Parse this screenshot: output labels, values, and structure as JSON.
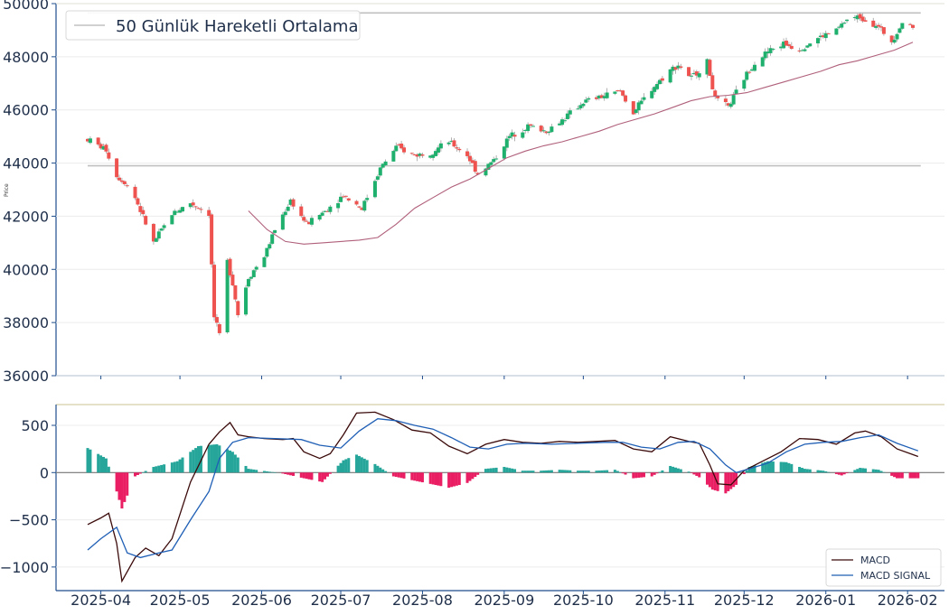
{
  "colors": {
    "up": "#26a69a",
    "up_body": "#1fb06e",
    "down": "#ef5350",
    "wick": "#9e9e9e",
    "ma": "#b0607a",
    "hline": "#c0c0c0",
    "axis": "#1f4e8c",
    "tick_label": "#1f2f4a",
    "macd": "#3b0a0a",
    "signal": "#1f5fb5",
    "hist_pos": "#26a69a",
    "hist_neg": "#e91e63",
    "top_border": "#d4cfa8"
  },
  "chart_data": [
    {
      "type": "candlestick",
      "ylabel": "Price",
      "ylim": [
        36000,
        50000
      ],
      "yticks": [
        36000,
        38000,
        40000,
        42000,
        44000,
        46000,
        48000,
        50000
      ],
      "legend": {
        "label": "50 Günlük Hareketli Ortalama",
        "placement": "top-left"
      },
      "horizontal_lines": [
        49650,
        43900
      ],
      "ohlc_anchors": [
        [
          "2025-03-27",
          44900
        ],
        [
          "2025-04-03",
          44500
        ],
        [
          "2025-04-07",
          43500
        ],
        [
          "2025-04-10",
          43300
        ],
        [
          "2025-04-14",
          42700
        ],
        [
          "2025-04-21",
          41000
        ],
        [
          "2025-04-28",
          42100
        ],
        [
          "2025-05-05",
          42500
        ],
        [
          "2025-05-12",
          42100
        ],
        [
          "2025-05-14",
          38200
        ],
        [
          "2025-05-16",
          37500
        ],
        [
          "2025-05-19",
          40300
        ],
        [
          "2025-05-21",
          39500
        ],
        [
          "2025-05-23",
          38300
        ],
        [
          "2025-05-27",
          39700
        ],
        [
          "2025-06-02",
          40500
        ],
        [
          "2025-06-06",
          41500
        ],
        [
          "2025-06-12",
          42600
        ],
        [
          "2025-06-18",
          41700
        ],
        [
          "2025-06-25",
          42200
        ],
        [
          "2025-07-02",
          42800
        ],
        [
          "2025-07-09",
          42300
        ],
        [
          "2025-07-16",
          43800
        ],
        [
          "2025-07-22",
          44600
        ],
        [
          "2025-07-29",
          44300
        ],
        [
          "2025-08-04",
          44400
        ],
        [
          "2025-08-11",
          44800
        ],
        [
          "2025-08-18",
          44300
        ],
        [
          "2025-08-22",
          43600
        ],
        [
          "2025-08-28",
          44100
        ],
        [
          "2025-09-03",
          45000
        ],
        [
          "2025-09-10",
          45400
        ],
        [
          "2025-09-17",
          45200
        ],
        [
          "2025-09-24",
          45700
        ],
        [
          "2025-10-01",
          46300
        ],
        [
          "2025-10-08",
          46500
        ],
        [
          "2025-10-15",
          46700
        ],
        [
          "2025-10-20",
          45900
        ],
        [
          "2025-10-27",
          46800
        ],
        [
          "2025-11-03",
          47500
        ],
        [
          "2025-11-06",
          47700
        ],
        [
          "2025-11-11",
          47200
        ],
        [
          "2025-11-17",
          47800
        ],
        [
          "2025-11-20",
          46400
        ],
        [
          "2025-11-25",
          46100
        ],
        [
          "2025-12-01",
          47200
        ],
        [
          "2025-12-05",
          47800
        ],
        [
          "2025-12-10",
          48200
        ],
        [
          "2025-12-16",
          48500
        ],
        [
          "2025-12-22",
          48300
        ],
        [
          "2025-12-29",
          48700
        ],
        [
          "2026-01-05",
          49000
        ],
        [
          "2026-01-09",
          49400
        ],
        [
          "2026-01-14",
          49500
        ],
        [
          "2026-01-20",
          49200
        ],
        [
          "2026-01-26",
          48600
        ],
        [
          "2026-01-30",
          49300
        ],
        [
          "2026-02-03",
          49100
        ]
      ],
      "ma50": [
        [
          "2025-05-27",
          42200
        ],
        [
          "2025-06-03",
          41500
        ],
        [
          "2025-06-10",
          41050
        ],
        [
          "2025-06-17",
          40950
        ],
        [
          "2025-06-24",
          41000
        ],
        [
          "2025-07-01",
          41050
        ],
        [
          "2025-07-08",
          41100
        ],
        [
          "2025-07-15",
          41200
        ],
        [
          "2025-07-22",
          41700
        ],
        [
          "2025-07-29",
          42300
        ],
        [
          "2025-08-05",
          42700
        ],
        [
          "2025-08-12",
          43100
        ],
        [
          "2025-08-19",
          43400
        ],
        [
          "2025-08-26",
          43800
        ],
        [
          "2025-09-02",
          44200
        ],
        [
          "2025-09-09",
          44450
        ],
        [
          "2025-09-16",
          44650
        ],
        [
          "2025-09-23",
          44800
        ],
        [
          "2025-09-30",
          45000
        ],
        [
          "2025-10-07",
          45200
        ],
        [
          "2025-10-14",
          45450
        ],
        [
          "2025-10-21",
          45650
        ],
        [
          "2025-10-28",
          45850
        ],
        [
          "2025-11-04",
          46100
        ],
        [
          "2025-11-11",
          46350
        ],
        [
          "2025-11-18",
          46500
        ],
        [
          "2025-11-25",
          46550
        ],
        [
          "2025-12-02",
          46650
        ],
        [
          "2025-12-09",
          46850
        ],
        [
          "2025-12-16",
          47050
        ],
        [
          "2025-12-23",
          47250
        ],
        [
          "2025-12-30",
          47450
        ],
        [
          "2026-01-06",
          47700
        ],
        [
          "2026-01-13",
          47850
        ],
        [
          "2026-01-20",
          48050
        ],
        [
          "2026-01-27",
          48250
        ],
        [
          "2026-02-03",
          48550
        ]
      ]
    },
    {
      "type": "line",
      "ylim": [
        -1250,
        720
      ],
      "yticks": [
        -1000,
        -500,
        0,
        500
      ],
      "legend_placement": "bottom-right",
      "series": [
        {
          "name": "MACD",
          "values": [
            [
              "2025-03-27",
              -550
            ],
            [
              "2025-04-01",
              -480
            ],
            [
              "2025-04-04",
              -430
            ],
            [
              "2025-04-07",
              -750
            ],
            [
              "2025-04-09",
              -1150
            ],
            [
              "2025-04-14",
              -900
            ],
            [
              "2025-04-18",
              -800
            ],
            [
              "2025-04-23",
              -880
            ],
            [
              "2025-04-28",
              -700
            ],
            [
              "2025-05-05",
              -100
            ],
            [
              "2025-05-12",
              300
            ],
            [
              "2025-05-16",
              430
            ],
            [
              "2025-05-20",
              530
            ],
            [
              "2025-05-23",
              400
            ],
            [
              "2025-05-27",
              380
            ],
            [
              "2025-06-02",
              360
            ],
            [
              "2025-06-09",
              350
            ],
            [
              "2025-06-13",
              360
            ],
            [
              "2025-06-17",
              220
            ],
            [
              "2025-06-23",
              150
            ],
            [
              "2025-06-27",
              200
            ],
            [
              "2025-07-02",
              400
            ],
            [
              "2025-07-07",
              630
            ],
            [
              "2025-07-14",
              640
            ],
            [
              "2025-07-21",
              560
            ],
            [
              "2025-07-28",
              450
            ],
            [
              "2025-08-04",
              420
            ],
            [
              "2025-08-11",
              280
            ],
            [
              "2025-08-18",
              200
            ],
            [
              "2025-08-25",
              300
            ],
            [
              "2025-09-01",
              350
            ],
            [
              "2025-09-08",
              320
            ],
            [
              "2025-09-15",
              310
            ],
            [
              "2025-09-22",
              330
            ],
            [
              "2025-09-29",
              320
            ],
            [
              "2025-10-06",
              330
            ],
            [
              "2025-10-13",
              340
            ],
            [
              "2025-10-20",
              250
            ],
            [
              "2025-10-27",
              220
            ],
            [
              "2025-11-03",
              380
            ],
            [
              "2025-11-10",
              330
            ],
            [
              "2025-11-14",
              310
            ],
            [
              "2025-11-18",
              80
            ],
            [
              "2025-11-21",
              -120
            ],
            [
              "2025-11-26",
              -130
            ],
            [
              "2025-12-01",
              20
            ],
            [
              "2025-12-08",
              120
            ],
            [
              "2025-12-15",
              220
            ],
            [
              "2025-12-22",
              360
            ],
            [
              "2025-12-29",
              350
            ],
            [
              "2026-01-05",
              300
            ],
            [
              "2026-01-12",
              420
            ],
            [
              "2026-01-16",
              440
            ],
            [
              "2026-01-22",
              380
            ],
            [
              "2026-01-28",
              250
            ],
            [
              "2026-02-03",
              190
            ],
            [
              "2026-02-05",
              170
            ]
          ]
        },
        {
          "name": "MACD SIGNAL",
          "values": [
            [
              "2025-03-27",
              -820
            ],
            [
              "2025-04-01",
              -700
            ],
            [
              "2025-04-07",
              -580
            ],
            [
              "2025-04-11",
              -850
            ],
            [
              "2025-04-16",
              -900
            ],
            [
              "2025-04-23",
              -850
            ],
            [
              "2025-04-28",
              -820
            ],
            [
              "2025-05-05",
              -500
            ],
            [
              "2025-05-12",
              -200
            ],
            [
              "2025-05-16",
              150
            ],
            [
              "2025-05-21",
              320
            ],
            [
              "2025-05-27",
              370
            ],
            [
              "2025-06-06",
              360
            ],
            [
              "2025-06-16",
              350
            ],
            [
              "2025-06-23",
              290
            ],
            [
              "2025-07-01",
              260
            ],
            [
              "2025-07-08",
              440
            ],
            [
              "2025-07-15",
              570
            ],
            [
              "2025-07-22",
              550
            ],
            [
              "2025-07-29",
              500
            ],
            [
              "2025-08-05",
              460
            ],
            [
              "2025-08-12",
              370
            ],
            [
              "2025-08-19",
              270
            ],
            [
              "2025-08-26",
              250
            ],
            [
              "2025-09-02",
              300
            ],
            [
              "2025-09-09",
              310
            ],
            [
              "2025-09-19",
              300
            ],
            [
              "2025-09-29",
              310
            ],
            [
              "2025-10-09",
              320
            ],
            [
              "2025-10-16",
              320
            ],
            [
              "2025-10-23",
              270
            ],
            [
              "2025-10-30",
              250
            ],
            [
              "2025-11-06",
              320
            ],
            [
              "2025-11-12",
              330
            ],
            [
              "2025-11-18",
              250
            ],
            [
              "2025-11-24",
              80
            ],
            [
              "2025-11-28",
              0
            ],
            [
              "2025-12-03",
              40
            ],
            [
              "2025-12-10",
              100
            ],
            [
              "2025-12-17",
              220
            ],
            [
              "2025-12-24",
              300
            ],
            [
              "2025-12-31",
              320
            ],
            [
              "2026-01-07",
              330
            ],
            [
              "2026-01-14",
              370
            ],
            [
              "2026-01-21",
              400
            ],
            [
              "2026-01-28",
              310
            ],
            [
              "2026-02-05",
              230
            ]
          ]
        }
      ],
      "histogram": [
        [
          "2025-03-27",
          260
        ],
        [
          "2025-04-03",
          150
        ],
        [
          "2025-04-07",
          -200
        ],
        [
          "2025-04-09",
          -380
        ],
        [
          "2025-04-14",
          -40
        ],
        [
          "2025-04-21",
          60
        ],
        [
          "2025-04-30",
          120
        ],
        [
          "2025-05-08",
          280
        ],
        [
          "2025-05-15",
          300
        ],
        [
          "2025-05-21",
          220
        ],
        [
          "2025-05-27",
          40
        ],
        [
          "2025-06-09",
          -10
        ],
        [
          "2025-06-17",
          -60
        ],
        [
          "2025-06-24",
          -100
        ],
        [
          "2025-07-02",
          130
        ],
        [
          "2025-07-07",
          190
        ],
        [
          "2025-07-14",
          90
        ],
        [
          "2025-07-21",
          -40
        ],
        [
          "2025-07-28",
          -80
        ],
        [
          "2025-08-04",
          -120
        ],
        [
          "2025-08-11",
          -160
        ],
        [
          "2025-08-18",
          -110
        ],
        [
          "2025-08-25",
          40
        ],
        [
          "2025-09-01",
          60
        ],
        [
          "2025-09-08",
          20
        ],
        [
          "2025-09-15",
          20
        ],
        [
          "2025-09-22",
          30
        ],
        [
          "2025-09-29",
          20
        ],
        [
          "2025-10-06",
          20
        ],
        [
          "2025-10-13",
          30
        ],
        [
          "2025-10-20",
          -60
        ],
        [
          "2025-10-27",
          -40
        ],
        [
          "2025-11-03",
          70
        ],
        [
          "2025-11-10",
          10
        ],
        [
          "2025-11-14",
          -50
        ],
        [
          "2025-11-19",
          -180
        ],
        [
          "2025-11-24",
          -220
        ],
        [
          "2025-11-28",
          -130
        ],
        [
          "2025-12-03",
          60
        ],
        [
          "2025-12-10",
          120
        ],
        [
          "2025-12-17",
          110
        ],
        [
          "2025-12-24",
          40
        ],
        [
          "2025-12-31",
          20
        ],
        [
          "2026-01-07",
          -30
        ],
        [
          "2026-01-14",
          50
        ],
        [
          "2026-01-21",
          30
        ],
        [
          "2026-01-28",
          -60
        ],
        [
          "2026-02-05",
          -60
        ]
      ]
    }
  ],
  "x_axis": {
    "ticks": [
      "2025-04",
      "2025-05",
      "2025-06",
      "2025-07",
      "2025-08",
      "2025-09",
      "2025-10",
      "2025-11",
      "2025-12",
      "2026-01",
      "2026-02"
    ],
    "range": [
      "2025-03-15",
      "2026-02-15"
    ]
  }
}
